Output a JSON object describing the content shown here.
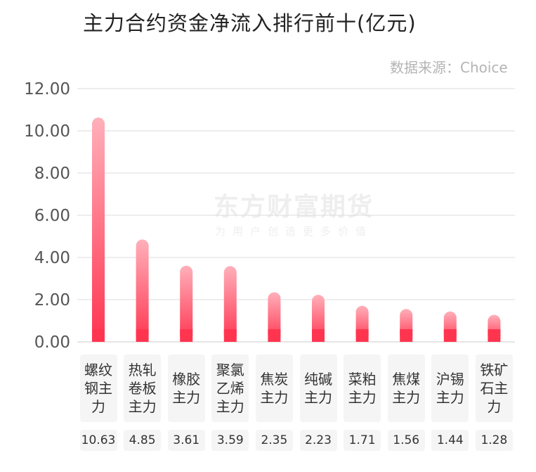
{
  "title": "主力合约资金净流入排行前十(亿元)",
  "source": "数据来源：Choice",
  "watermark": {
    "main": "东方财富期货",
    "sub": "为用户创造更多价值"
  },
  "colors": {
    "bar_top": "#ffb0ba",
    "bar_bottom": "#ff3550",
    "grid": "#dddddd",
    "axis_text": "#555555"
  },
  "chart_data": {
    "type": "bar",
    "categories": [
      "螺纹钢主力",
      "热轧卷板主力",
      "橡胶主力",
      "聚氯乙烯主力",
      "焦炭主力",
      "纯碱主力",
      "菜粕主力",
      "焦煤主力",
      "沪锡主力",
      "铁矿石主力"
    ],
    "values": [
      10.63,
      4.85,
      3.61,
      3.59,
      2.35,
      2.23,
      1.71,
      1.56,
      1.44,
      1.28
    ],
    "value_labels": [
      "10.63",
      "4.85",
      "3.61",
      "3.59",
      "2.35",
      "2.23",
      "1.71",
      "1.56",
      "1.44",
      "1.28"
    ],
    "yticks": [
      "0.00",
      "2.00",
      "4.00",
      "6.00",
      "8.00",
      "10.00",
      "12.00"
    ],
    "ylim": [
      0,
      12
    ],
    "grid": true
  }
}
